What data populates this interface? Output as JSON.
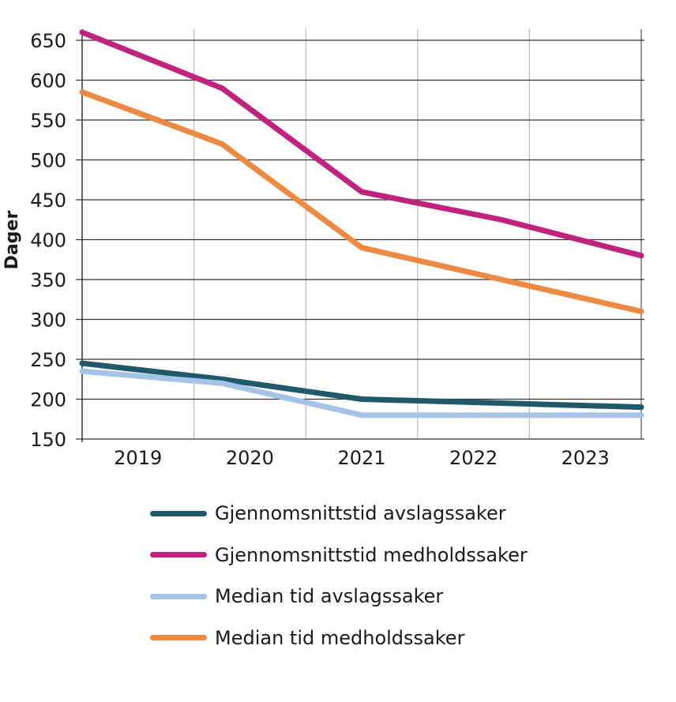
{
  "chart_data": {
    "type": "line",
    "title": "",
    "xlabel": "",
    "ylabel": "Dager",
    "categories": [
      "2019",
      "2020",
      "2021",
      "2022",
      "2023"
    ],
    "ylim": [
      150,
      650
    ],
    "yticks": [
      150,
      200,
      250,
      300,
      350,
      400,
      450,
      500,
      550,
      600,
      650
    ],
    "grid": true,
    "legend_placement": "bottom",
    "series": [
      {
        "name": "Gjennomsnittstid avslagssaker",
        "color": "#1f5a6b",
        "values": [
          245,
          225,
          200,
          195,
          190
        ]
      },
      {
        "name": "Gjennomsnittstid medholdssaker",
        "color": "#c4217f",
        "values": [
          660,
          590,
          460,
          425,
          380
        ]
      },
      {
        "name": "Median tid avslagssaker",
        "color": "#a3c4e6",
        "values": [
          235,
          220,
          180,
          180,
          180
        ]
      },
      {
        "name": "Median tid medholdssaker",
        "color": "#f0883e",
        "values": [
          585,
          520,
          390,
          350,
          310
        ]
      }
    ]
  }
}
